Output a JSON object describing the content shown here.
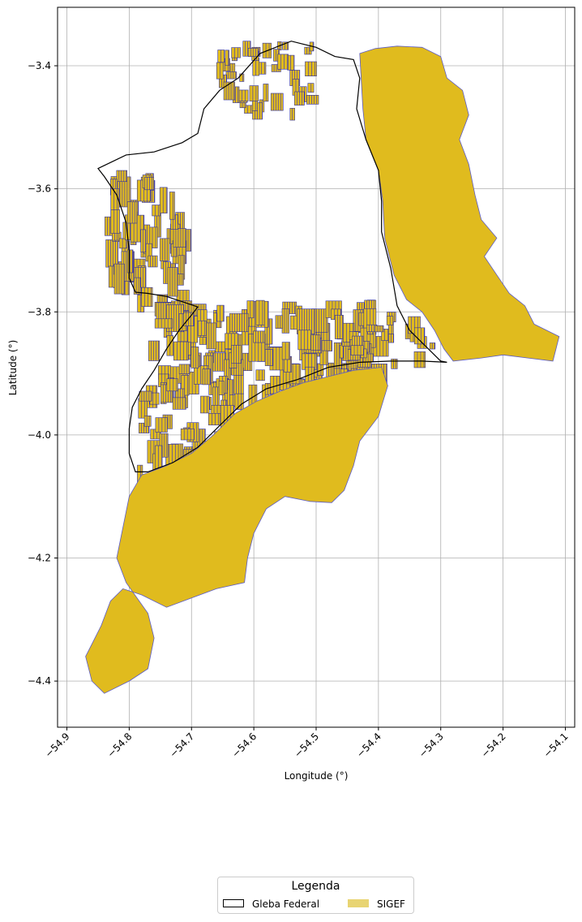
{
  "map": {
    "xlabel": "Longitude (°)",
    "ylabel": "Latitude (°)",
    "xlim": [
      -54.915,
      -54.085
    ],
    "ylim": [
      -4.475,
      -3.305
    ],
    "x_ticks": [
      -54.9,
      -54.8,
      -54.7,
      -54.6,
      -54.5,
      -54.4,
      -54.3,
      -54.2,
      -54.1
    ],
    "y_ticks": [
      -3.4,
      -3.6,
      -3.8,
      -4.0,
      -4.2,
      -4.4
    ],
    "x_tick_labels": [
      "−54.9",
      "−54.8",
      "−54.7",
      "−54.6",
      "−54.5",
      "−54.4",
      "−54.3",
      "−54.2",
      "−54.1"
    ],
    "y_tick_labels": [
      "−3.4",
      "−3.6",
      "−3.8",
      "−4.0",
      "−4.2",
      "−4.4"
    ],
    "grid": true,
    "x_tick_rotation_deg": 45
  },
  "layers": {
    "gleba": {
      "name": "Gleba Federal",
      "edge_color": "#000000",
      "fill_color": "none",
      "boundary": [
        [
          -54.78,
          -3.925
        ],
        [
          -54.76,
          -3.895
        ],
        [
          -54.74,
          -3.86
        ],
        [
          -54.72,
          -3.83
        ],
        [
          -54.7,
          -3.805
        ],
        [
          -54.69,
          -3.792
        ],
        [
          -54.71,
          -3.785
        ],
        [
          -54.74,
          -3.775
        ],
        [
          -54.77,
          -3.77
        ],
        [
          -54.79,
          -3.768
        ],
        [
          -54.8,
          -3.745
        ],
        [
          -54.8,
          -3.7
        ],
        [
          -54.805,
          -3.655
        ],
        [
          -54.82,
          -3.61
        ],
        [
          -54.84,
          -3.58
        ],
        [
          -54.85,
          -3.567
        ],
        [
          -54.805,
          -3.545
        ],
        [
          -54.76,
          -3.54
        ],
        [
          -54.715,
          -3.525
        ],
        [
          -54.69,
          -3.51
        ],
        [
          -54.68,
          -3.47
        ],
        [
          -54.655,
          -3.44
        ],
        [
          -54.625,
          -3.42
        ],
        [
          -54.59,
          -3.38
        ],
        [
          -54.54,
          -3.36
        ],
        [
          -54.5,
          -3.37
        ],
        [
          -54.47,
          -3.385
        ],
        [
          -54.44,
          -3.39
        ],
        [
          -54.43,
          -3.42
        ],
        [
          -54.435,
          -3.47
        ],
        [
          -54.42,
          -3.52
        ],
        [
          -54.4,
          -3.57
        ],
        [
          -54.395,
          -3.62
        ],
        [
          -54.395,
          -3.67
        ],
        [
          -54.38,
          -3.73
        ],
        [
          -54.37,
          -3.79
        ],
        [
          -54.35,
          -3.83
        ],
        [
          -54.33,
          -3.85
        ],
        [
          -54.3,
          -3.88
        ],
        [
          -54.29,
          -3.882
        ],
        [
          -54.33,
          -3.88
        ],
        [
          -54.38,
          -3.88
        ],
        [
          -54.43,
          -3.882
        ],
        [
          -54.48,
          -3.89
        ],
        [
          -54.53,
          -3.91
        ],
        [
          -54.58,
          -3.925
        ],
        [
          -54.62,
          -3.95
        ],
        [
          -54.66,
          -3.99
        ],
        [
          -54.69,
          -4.02
        ],
        [
          -54.73,
          -4.045
        ],
        [
          -54.77,
          -4.06
        ],
        [
          -54.79,
          -4.06
        ],
        [
          -54.8,
          -4.03
        ],
        [
          -54.8,
          -3.99
        ],
        [
          -54.795,
          -3.955
        ]
      ]
    },
    "sigef": {
      "name": "SIGEF",
      "fill_color": "#e0bb1e",
      "legend_fill_color": "#e8d472",
      "edge_color": "#5b5bc8",
      "parcel_edge_color": "#1414e0",
      "large_parcels": [
        [
          [
            -54.43,
            -3.38
          ],
          [
            -54.405,
            -3.372
          ],
          [
            -54.37,
            -3.368
          ],
          [
            -54.33,
            -3.37
          ],
          [
            -54.3,
            -3.385
          ],
          [
            -54.29,
            -3.42
          ],
          [
            -54.265,
            -3.44
          ],
          [
            -54.255,
            -3.48
          ],
          [
            -54.27,
            -3.52
          ],
          [
            -54.255,
            -3.56
          ],
          [
            -54.245,
            -3.61
          ],
          [
            -54.235,
            -3.65
          ],
          [
            -54.21,
            -3.68
          ],
          [
            -54.23,
            -3.71
          ],
          [
            -54.21,
            -3.74
          ],
          [
            -54.19,
            -3.77
          ],
          [
            -54.165,
            -3.79
          ],
          [
            -54.15,
            -3.82
          ],
          [
            -54.13,
            -3.83
          ],
          [
            -54.11,
            -3.84
          ],
          [
            -54.12,
            -3.88
          ],
          [
            -54.16,
            -3.875
          ],
          [
            -54.2,
            -3.87
          ],
          [
            -54.235,
            -3.875
          ],
          [
            -54.28,
            -3.88
          ],
          [
            -54.295,
            -3.86
          ],
          [
            -54.31,
            -3.83
          ],
          [
            -54.33,
            -3.8
          ],
          [
            -54.355,
            -3.78
          ],
          [
            -54.375,
            -3.74
          ],
          [
            -54.39,
            -3.68
          ],
          [
            -54.393,
            -3.62
          ],
          [
            -54.4,
            -3.57
          ],
          [
            -54.42,
            -3.52
          ],
          [
            -54.425,
            -3.47
          ]
        ],
        [
          [
            -54.78,
            -4.065
          ],
          [
            -54.74,
            -4.05
          ],
          [
            -54.7,
            -4.03
          ],
          [
            -54.665,
            -4.0
          ],
          [
            -54.63,
            -3.965
          ],
          [
            -54.595,
            -3.945
          ],
          [
            -54.56,
            -3.93
          ],
          [
            -54.52,
            -3.915
          ],
          [
            -54.48,
            -3.905
          ],
          [
            -54.44,
            -3.895
          ],
          [
            -54.395,
            -3.89
          ],
          [
            -54.385,
            -3.92
          ],
          [
            -54.4,
            -3.97
          ],
          [
            -54.43,
            -4.01
          ],
          [
            -54.44,
            -4.05
          ],
          [
            -54.455,
            -4.09
          ],
          [
            -54.475,
            -4.11
          ],
          [
            -54.51,
            -4.108
          ],
          [
            -54.55,
            -4.1
          ],
          [
            -54.58,
            -4.12
          ],
          [
            -54.6,
            -4.16
          ],
          [
            -54.61,
            -4.2
          ],
          [
            -54.615,
            -4.24
          ],
          [
            -54.66,
            -4.25
          ],
          [
            -54.7,
            -4.265
          ],
          [
            -54.74,
            -4.28
          ],
          [
            -54.78,
            -4.26
          ],
          [
            -54.81,
            -4.25
          ],
          [
            -54.83,
            -4.27
          ],
          [
            -54.845,
            -4.31
          ],
          [
            -54.86,
            -4.34
          ],
          [
            -54.87,
            -4.36
          ],
          [
            -54.86,
            -4.4
          ],
          [
            -54.84,
            -4.42
          ],
          [
            -54.8,
            -4.4
          ],
          [
            -54.77,
            -4.38
          ],
          [
            -54.76,
            -4.33
          ],
          [
            -54.77,
            -4.29
          ],
          [
            -54.805,
            -4.24
          ],
          [
            -54.82,
            -4.2
          ],
          [
            -54.81,
            -4.15
          ],
          [
            -54.8,
            -4.1
          ]
        ]
      ]
    }
  },
  "legend": {
    "title": "Legenda",
    "items": [
      {
        "label": "Gleba Federal"
      },
      {
        "label": "SIGEF"
      }
    ]
  }
}
